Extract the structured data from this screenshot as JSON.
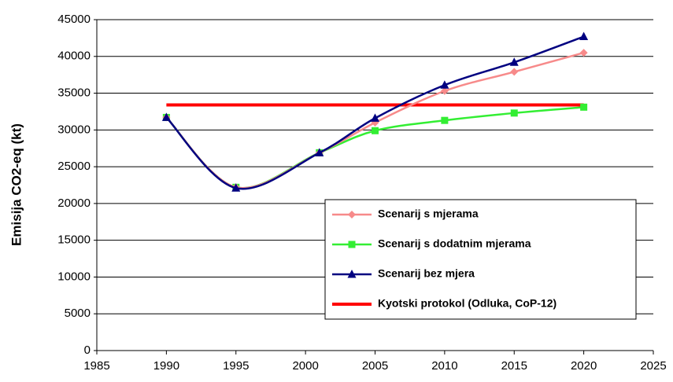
{
  "chart_data": {
    "type": "line",
    "y_label": "Emisija CO2-eq (kt)",
    "x": [
      1990,
      1995,
      2001,
      2005,
      2010,
      2015,
      2020
    ],
    "series": [
      {
        "name": "Scenarij s mjerama",
        "color": "#f78a8a",
        "marker": "diamond",
        "values": [
          31700,
          22200,
          26900,
          31000,
          35300,
          37900,
          40500
        ]
      },
      {
        "name": "Scenarij s dodatnim mjerama",
        "color": "#33ee33",
        "marker": "square",
        "values": [
          31700,
          22200,
          26900,
          29900,
          31300,
          32300,
          33100
        ]
      },
      {
        "name": "Scenarij bez mjera",
        "color": "#000080",
        "marker": "triangle",
        "values": [
          31700,
          22100,
          26900,
          31600,
          36100,
          39200,
          42700
        ]
      },
      {
        "name": "Kyotski protokol (Odluka, CoP-12)",
        "color": "#ff0000",
        "marker": "none",
        "values": [
          33400,
          33400,
          33400,
          33400,
          33400,
          33400,
          33400
        ]
      }
    ],
    "xlim": [
      1985,
      2025
    ],
    "xticks": [
      1985,
      1990,
      1995,
      2000,
      2005,
      2010,
      2015,
      2020,
      2025
    ],
    "ylim": [
      0,
      45000
    ],
    "yticks": [
      0,
      5000,
      10000,
      15000,
      20000,
      25000,
      30000,
      35000,
      40000,
      45000
    ],
    "grid": true
  }
}
